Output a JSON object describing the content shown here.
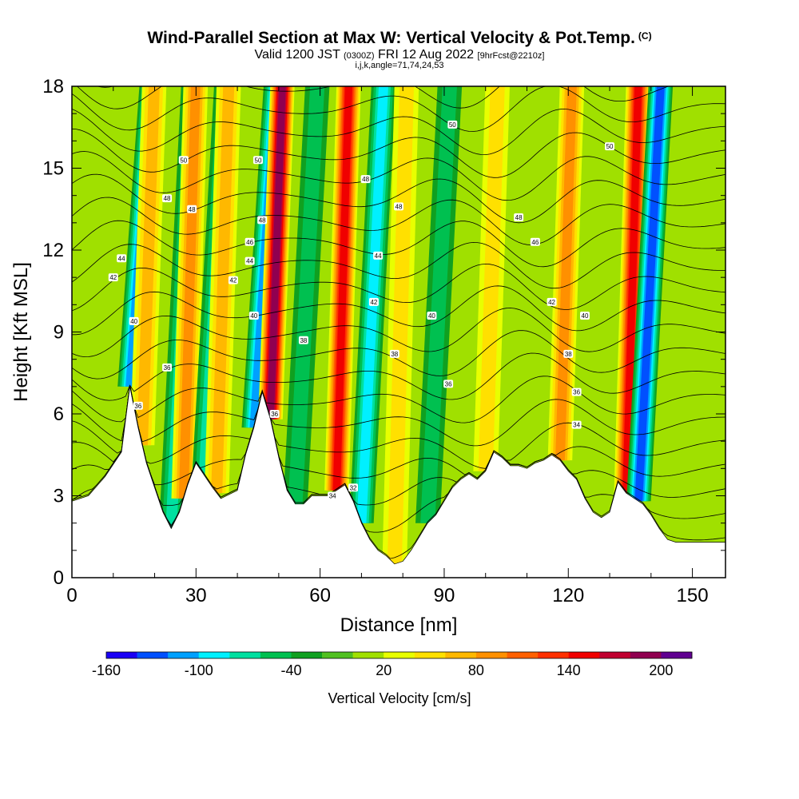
{
  "titles": {
    "main": "Wind-Parallel Section at Max W: Vertical Velocity & Pot.Temp.",
    "copyright": "(C)",
    "valid_prefix": "Valid 1200 JST",
    "valid_utc": "(0300Z)",
    "valid_date": "FRI 12 Aug 2022",
    "forecast": "[9hrFcst@2210z]",
    "indices": "i,j,k,angle=71,74,24,53"
  },
  "chart_data": {
    "type": "heatmap",
    "title": "Wind-Parallel Section at Max W: Vertical Velocity & Pot.Temp.",
    "xlabel": "Distance [nm]",
    "ylabel": "Height [Kft MSL]",
    "xlim": [
      0,
      158
    ],
    "ylim": [
      0,
      18
    ],
    "x_ticks": [
      0,
      30,
      60,
      90,
      120,
      150
    ],
    "y_ticks": [
      0,
      3,
      6,
      9,
      12,
      15,
      18
    ],
    "colorbar": {
      "title": "Vertical Velocity [cm/s]",
      "tick_values": [
        -160,
        -100,
        -40,
        20,
        80,
        140,
        200
      ],
      "tick_labels": [
        "-160",
        "-100",
        "-40",
        "20",
        "80",
        "140",
        "200"
      ],
      "range": [
        -160,
        220
      ],
      "step": 20,
      "colors": [
        "#1a00f5",
        "#0050ff",
        "#00a0ff",
        "#00f0ff",
        "#00e0a0",
        "#00c050",
        "#10a020",
        "#50c020",
        "#a0e000",
        "#e8ff00",
        "#ffe000",
        "#ffb800",
        "#ff9000",
        "#ff6000",
        "#ff3000",
        "#f00000",
        "#c00030",
        "#900050",
        "#600090"
      ]
    },
    "terrain_height_kft": {
      "x": [
        0,
        4,
        8,
        12,
        14,
        16,
        18,
        20,
        22,
        24,
        26,
        28,
        30,
        34,
        36,
        40,
        42,
        44,
        46,
        48,
        50,
        52,
        54,
        56,
        58,
        62,
        64,
        66,
        68,
        70,
        72,
        74,
        76,
        78,
        80,
        82,
        84,
        86,
        88,
        90,
        92,
        94,
        96,
        98,
        100,
        102,
        104,
        106,
        108,
        110,
        112,
        114,
        116,
        118,
        120,
        122,
        124,
        126,
        128,
        130,
        132,
        134,
        136,
        138,
        140,
        142,
        144,
        146,
        148,
        150,
        152,
        158
      ],
      "y": [
        2.8,
        3.0,
        3.7,
        4.6,
        7.0,
        5.5,
        4.2,
        3.3,
        2.4,
        1.8,
        2.4,
        3.4,
        4.2,
        3.3,
        2.9,
        3.2,
        4.5,
        5.5,
        6.8,
        5.8,
        4.4,
        3.2,
        2.7,
        2.7,
        3.0,
        3.0,
        3.2,
        3.4,
        2.8,
        2.0,
        1.4,
        1.0,
        0.8,
        0.5,
        0.6,
        1.0,
        1.5,
        2.0,
        2.3,
        2.8,
        3.3,
        3.6,
        3.8,
        3.6,
        3.9,
        4.6,
        4.4,
        4.1,
        4.1,
        4.0,
        4.2,
        4.3,
        4.5,
        4.3,
        3.9,
        3.6,
        2.9,
        2.4,
        2.2,
        2.4,
        3.5,
        3.1,
        2.9,
        2.7,
        2.3,
        1.8,
        1.4,
        1.3,
        1.3,
        1.3,
        1.3,
        1.3
      ]
    },
    "vertical_velocity_cores": [
      {
        "x": 14,
        "sign": "down",
        "peak": -110
      },
      {
        "x": 17,
        "sign": "up",
        "peak": 70
      },
      {
        "x": 24,
        "sign": "down",
        "peak": -60
      },
      {
        "x": 27,
        "sign": "up",
        "peak": 80
      },
      {
        "x": 32,
        "sign": "down",
        "peak": -60
      },
      {
        "x": 35,
        "sign": "up",
        "peak": 60
      },
      {
        "x": 44,
        "sign": "down",
        "peak": -100
      },
      {
        "x": 48,
        "sign": "up",
        "peak": 180
      },
      {
        "x": 54,
        "sign": "down",
        "peak": -50
      },
      {
        "x": 64,
        "sign": "up",
        "peak": 140
      },
      {
        "x": 70,
        "sign": "down",
        "peak": -90
      },
      {
        "x": 78,
        "sign": "up",
        "peak": 40
      },
      {
        "x": 86,
        "sign": "down",
        "peak": -40
      },
      {
        "x": 100,
        "sign": "up",
        "peak": 50
      },
      {
        "x": 118,
        "sign": "up",
        "peak": 80
      },
      {
        "x": 134,
        "sign": "up",
        "peak": 140
      },
      {
        "x": 137,
        "sign": "down",
        "peak": -120
      }
    ],
    "theta_contours": {
      "levels": [
        32,
        33,
        34,
        35,
        36,
        37,
        38,
        39,
        40,
        41,
        42,
        43,
        44,
        45,
        46,
        47,
        48,
        49,
        50,
        51,
        52,
        53
      ],
      "labels": [
        {
          "text": "50",
          "x": 92,
          "y": 16.6
        },
        {
          "text": "50",
          "x": 130,
          "y": 15.8
        },
        {
          "text": "50",
          "x": 27,
          "y": 15.3
        },
        {
          "text": "50",
          "x": 45,
          "y": 15.3
        },
        {
          "text": "48",
          "x": 71,
          "y": 14.6
        },
        {
          "text": "48",
          "x": 23,
          "y": 13.9
        },
        {
          "text": "48",
          "x": 29,
          "y": 13.5
        },
        {
          "text": "48",
          "x": 79,
          "y": 13.6
        },
        {
          "text": "48",
          "x": 108,
          "y": 13.2
        },
        {
          "text": "48",
          "x": 46,
          "y": 13.1
        },
        {
          "text": "46",
          "x": 112,
          "y": 12.3
        },
        {
          "text": "46",
          "x": 43,
          "y": 12.3
        },
        {
          "text": "44",
          "x": 12,
          "y": 11.7
        },
        {
          "text": "44",
          "x": 43,
          "y": 11.6
        },
        {
          "text": "44",
          "x": 74,
          "y": 11.8
        },
        {
          "text": "42",
          "x": 10,
          "y": 11.0
        },
        {
          "text": "42",
          "x": 39,
          "y": 10.9
        },
        {
          "text": "42",
          "x": 73,
          "y": 10.1
        },
        {
          "text": "42",
          "x": 116,
          "y": 10.1
        },
        {
          "text": "40",
          "x": 15,
          "y": 9.4
        },
        {
          "text": "40",
          "x": 44,
          "y": 9.6
        },
        {
          "text": "40",
          "x": 87,
          "y": 9.6
        },
        {
          "text": "40",
          "x": 124,
          "y": 9.6
        },
        {
          "text": "38",
          "x": 56,
          "y": 8.7
        },
        {
          "text": "38",
          "x": 78,
          "y": 8.2
        },
        {
          "text": "38",
          "x": 120,
          "y": 8.2
        },
        {
          "text": "36",
          "x": 23,
          "y": 7.7
        },
        {
          "text": "36",
          "x": 91,
          "y": 7.1
        },
        {
          "text": "36",
          "x": 122,
          "y": 6.8
        },
        {
          "text": "36",
          "x": 16,
          "y": 6.3
        },
        {
          "text": "36",
          "x": 49,
          "y": 6.0
        },
        {
          "text": "34",
          "x": 122,
          "y": 5.6
        },
        {
          "text": "34",
          "x": 63,
          "y": 3.0
        },
        {
          "text": "32",
          "x": 68,
          "y": 3.3
        }
      ]
    }
  }
}
